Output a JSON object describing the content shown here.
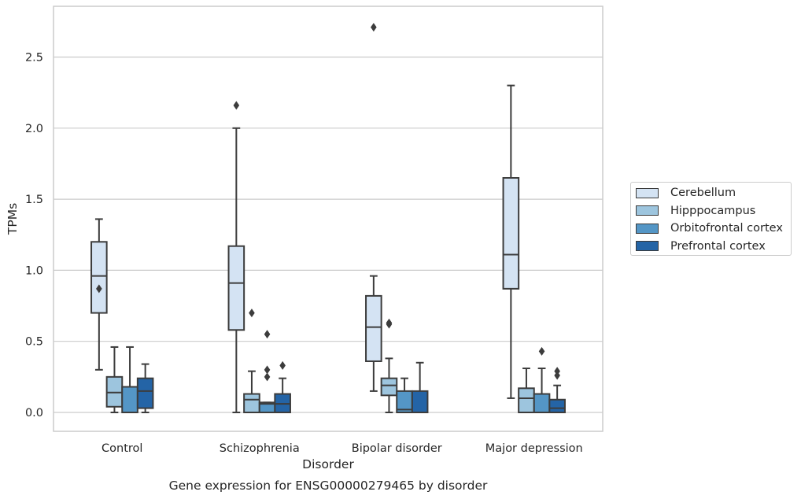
{
  "chart_data": {
    "type": "boxplot",
    "title": "",
    "caption": "Gene expression for ENSG00000279465 by disorder",
    "xlabel": "Disorder",
    "ylabel": "TPMs",
    "ylim": [
      -0.13,
      2.85
    ],
    "yticks": [
      "0.0",
      "0.5",
      "1.0",
      "1.5",
      "2.0",
      "2.5"
    ],
    "ytick_values": [
      0.0,
      0.5,
      1.0,
      1.5,
      2.0,
      2.5
    ],
    "grid": "y",
    "legend_position": "right",
    "categories": [
      "Control",
      "Schizophrenia",
      "Bipolar disorder",
      "Major depression"
    ],
    "series": [
      {
        "name": "Cerebellum",
        "color": "#d4e3f3",
        "boxes": [
          {
            "whislo": 0.3,
            "q1": 0.7,
            "med": 0.96,
            "q3": 1.2,
            "whishi": 1.36,
            "fliers": [
              0.87
            ]
          },
          {
            "whislo": 0.0,
            "q1": 0.58,
            "med": 0.91,
            "q3": 1.17,
            "whishi": 2.0,
            "fliers": [
              2.16
            ]
          },
          {
            "whislo": 0.15,
            "q1": 0.36,
            "med": 0.6,
            "q3": 0.82,
            "whishi": 0.96,
            "fliers": [
              2.71
            ]
          },
          {
            "whislo": 0.1,
            "q1": 0.87,
            "med": 1.11,
            "q3": 1.65,
            "whishi": 2.3,
            "fliers": []
          }
        ]
      },
      {
        "name": "Hipppocampus",
        "color": "#9dc5de",
        "boxes": [
          {
            "whislo": 0.0,
            "q1": 0.04,
            "med": 0.14,
            "q3": 0.25,
            "whishi": 0.46,
            "fliers": []
          },
          {
            "whislo": 0.0,
            "q1": 0.0,
            "med": 0.09,
            "q3": 0.13,
            "whishi": 0.29,
            "fliers": [
              0.7
            ]
          },
          {
            "whislo": 0.0,
            "q1": 0.12,
            "med": 0.19,
            "q3": 0.24,
            "whishi": 0.38,
            "fliers": [
              0.62,
              0.63
            ]
          },
          {
            "whislo": 0.0,
            "q1": 0.0,
            "med": 0.1,
            "q3": 0.17,
            "whishi": 0.31,
            "fliers": []
          }
        ]
      },
      {
        "name": "Orbitofrontal cortex",
        "color": "#5496c6",
        "boxes": [
          {
            "whislo": 0.0,
            "q1": 0.0,
            "med": 0.0,
            "q3": 0.18,
            "whishi": 0.46,
            "fliers": []
          },
          {
            "whislo": 0.0,
            "q1": 0.0,
            "med": 0.06,
            "q3": 0.07,
            "whishi": 0.07,
            "fliers": [
              0.25,
              0.3,
              0.55
            ]
          },
          {
            "whislo": 0.0,
            "q1": 0.0,
            "med": 0.02,
            "q3": 0.15,
            "whishi": 0.24,
            "fliers": []
          },
          {
            "whislo": 0.0,
            "q1": 0.0,
            "med": 0.0,
            "q3": 0.13,
            "whishi": 0.31,
            "fliers": [
              0.43
            ]
          }
        ]
      },
      {
        "name": "Prefrontal cortex",
        "color": "#2464a6",
        "boxes": [
          {
            "whislo": 0.0,
            "q1": 0.03,
            "med": 0.15,
            "q3": 0.24,
            "whishi": 0.34,
            "fliers": []
          },
          {
            "whislo": 0.0,
            "q1": 0.0,
            "med": 0.06,
            "q3": 0.13,
            "whishi": 0.24,
            "fliers": [
              0.33
            ]
          },
          {
            "whislo": 0.0,
            "q1": 0.0,
            "med": 0.0,
            "q3": 0.15,
            "whishi": 0.35,
            "fliers": []
          },
          {
            "whislo": 0.0,
            "q1": 0.0,
            "med": 0.03,
            "q3": 0.09,
            "whishi": 0.19,
            "fliers": [
              0.26,
              0.29
            ]
          }
        ]
      }
    ]
  }
}
